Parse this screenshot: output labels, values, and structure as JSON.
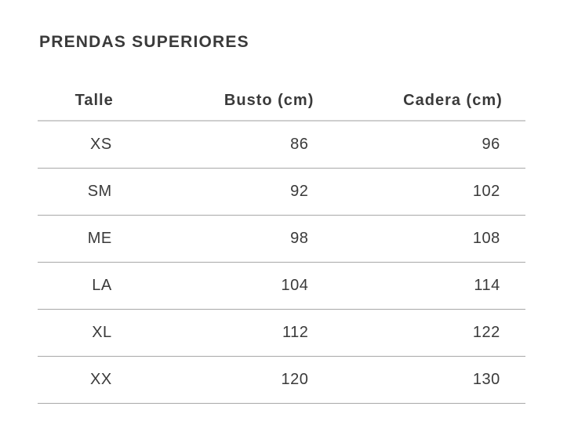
{
  "title": "PRENDAS SUPERIORES",
  "columns": [
    "Talle",
    "Busto (cm)",
    "Cadera (cm)"
  ],
  "rows": [
    [
      "XS",
      "86",
      "96"
    ],
    [
      "SM",
      "92",
      "102"
    ],
    [
      "ME",
      "98",
      "108"
    ],
    [
      "LA",
      "104",
      "114"
    ],
    [
      "XL",
      "112",
      "122"
    ],
    [
      "XX",
      "120",
      "130"
    ]
  ]
}
